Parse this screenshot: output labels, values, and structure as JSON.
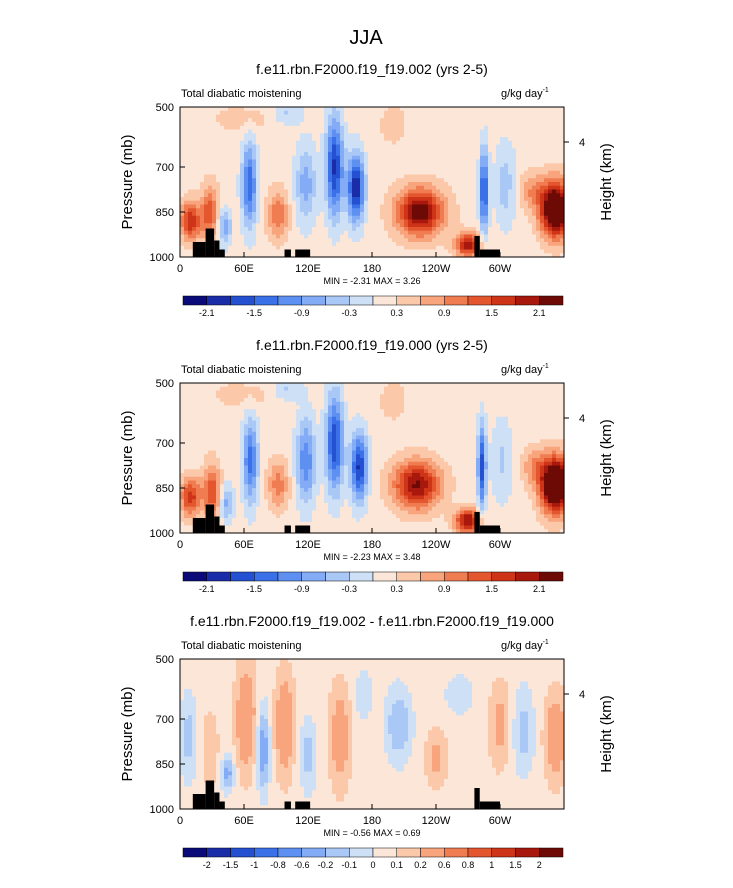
{
  "page": {
    "title": "JJA"
  },
  "chart_data": [
    {
      "type": "heatmap",
      "title": "f.e11.rbn.F2000.f19_f19.002 (yrs 2-5)",
      "left_label": "Total diabatic moistening",
      "units": "g/kg day",
      "units_exp": "-1",
      "ylabel": "Pressure (mb)",
      "ylabel_right": "Height (km)",
      "x_ticks": [
        "0",
        "60E",
        "120E",
        "180",
        "120W",
        "60W"
      ],
      "x_tick_lon": [
        0,
        60,
        120,
        180,
        240,
        300
      ],
      "xlim": [
        0,
        360
      ],
      "y_ticks": [
        "500",
        "700",
        "850",
        "1000"
      ],
      "y_tick_values": [
        500,
        700,
        850,
        1000
      ],
      "ylim": [
        1000,
        500
      ],
      "right_ticks": [
        "4"
      ],
      "stats": "MIN = -2.31  MAX =  3.26",
      "colorbar_labels": [
        "-2.1",
        "-1.5",
        "-0.9",
        "-0.3",
        "0.3",
        "0.9",
        "1.5",
        "2.1"
      ],
      "colorbar_label_slots": [
        1,
        3,
        5,
        7,
        9,
        11,
        13,
        15
      ],
      "colorbar_colors": [
        "#0a0a78",
        "#1a2ca8",
        "#2450d2",
        "#3a70e8",
        "#5e90f2",
        "#84acf6",
        "#aac8f6",
        "#cde0f6",
        "#fce6d8",
        "#fcc8aa",
        "#f8a47c",
        "#f07c52",
        "#e4562e",
        "#ce3418",
        "#a8180c",
        "#6e0a06"
      ],
      "anomalies": [
        {
          "lon": 10,
          "p": 880,
          "w": 10,
          "h": 65,
          "v": 1.6
        },
        {
          "lon": 28,
          "p": 850,
          "w": 8,
          "h": 90,
          "v": 1.2
        },
        {
          "lon": 42,
          "p": 900,
          "w": 6,
          "h": 60,
          "v": -1.0
        },
        {
          "lon": 65,
          "p": 760,
          "w": 7,
          "h": 140,
          "v": -1.6
        },
        {
          "lon": 92,
          "p": 860,
          "w": 10,
          "h": 80,
          "v": 1.0
        },
        {
          "lon": 118,
          "p": 760,
          "w": 10,
          "h": 130,
          "v": -0.9
        },
        {
          "lon": 145,
          "p": 700,
          "w": 8,
          "h": 160,
          "v": -2.0
        },
        {
          "lon": 165,
          "p": 770,
          "w": 8,
          "h": 110,
          "v": -2.2
        },
        {
          "lon": 200,
          "p": 560,
          "w": 12,
          "h": 60,
          "v": 0.4
        },
        {
          "lon": 225,
          "p": 850,
          "w": 22,
          "h": 80,
          "v": 2.2
        },
        {
          "lon": 270,
          "p": 960,
          "w": 12,
          "h": 40,
          "v": 1.8
        },
        {
          "lon": 285,
          "p": 780,
          "w": 4,
          "h": 140,
          "v": -1.8
        },
        {
          "lon": 305,
          "p": 760,
          "w": 10,
          "h": 140,
          "v": -0.6
        },
        {
          "lon": 352,
          "p": 840,
          "w": 14,
          "h": 90,
          "v": 3.0
        },
        {
          "lon": 330,
          "p": 780,
          "w": 12,
          "h": 60,
          "v": 0.7
        },
        {
          "lon": 60,
          "p": 540,
          "w": 30,
          "h": 50,
          "v": 0.3
        },
        {
          "lon": 100,
          "p": 520,
          "w": 14,
          "h": 40,
          "v": -0.5
        }
      ],
      "terrain": [
        {
          "lon0": 12,
          "lon1": 24,
          "p": 950
        },
        {
          "lon0": 24,
          "lon1": 32,
          "p": 905
        },
        {
          "lon0": 32,
          "lon1": 37,
          "p": 945
        },
        {
          "lon0": 37,
          "lon1": 42,
          "p": 975
        },
        {
          "lon0": 98,
          "lon1": 104,
          "p": 975
        },
        {
          "lon0": 108,
          "lon1": 122,
          "p": 975
        },
        {
          "lon0": 276,
          "lon1": 281,
          "p": 930
        },
        {
          "lon0": 281,
          "lon1": 300,
          "p": 975
        }
      ]
    },
    {
      "type": "heatmap",
      "title": "f.e11.rbn.F2000.f19_f19.000 (yrs 2-5)",
      "left_label": "Total diabatic moistening",
      "units": "g/kg day",
      "units_exp": "-1",
      "ylabel": "Pressure (mb)",
      "ylabel_right": "Height (km)",
      "x_ticks": [
        "0",
        "60E",
        "120E",
        "180",
        "120W",
        "60W"
      ],
      "x_tick_lon": [
        0,
        60,
        120,
        180,
        240,
        300
      ],
      "xlim": [
        0,
        360
      ],
      "y_ticks": [
        "500",
        "700",
        "850",
        "1000"
      ],
      "y_tick_values": [
        500,
        700,
        850,
        1000
      ],
      "ylim": [
        1000,
        500
      ],
      "right_ticks": [
        "4"
      ],
      "stats": "MIN = -2.23  MAX =  3.48",
      "colorbar_labels": [
        "-2.1",
        "-1.5",
        "-0.9",
        "-0.3",
        "0.3",
        "0.9",
        "1.5",
        "2.1"
      ],
      "colorbar_label_slots": [
        1,
        3,
        5,
        7,
        9,
        11,
        13,
        15
      ],
      "colorbar_colors": [
        "#0a0a78",
        "#1a2ca8",
        "#2450d2",
        "#3a70e8",
        "#5e90f2",
        "#84acf6",
        "#aac8f6",
        "#cde0f6",
        "#fce6d8",
        "#fcc8aa",
        "#f8a47c",
        "#f07c52",
        "#e4562e",
        "#ce3418",
        "#a8180c",
        "#6e0a06"
      ],
      "anomalies": [
        {
          "lon": 10,
          "p": 880,
          "w": 10,
          "h": 65,
          "v": 1.5
        },
        {
          "lon": 30,
          "p": 860,
          "w": 8,
          "h": 90,
          "v": 1.3
        },
        {
          "lon": 44,
          "p": 900,
          "w": 6,
          "h": 60,
          "v": -0.9
        },
        {
          "lon": 66,
          "p": 760,
          "w": 7,
          "h": 140,
          "v": -1.5
        },
        {
          "lon": 92,
          "p": 840,
          "w": 10,
          "h": 80,
          "v": 0.9
        },
        {
          "lon": 118,
          "p": 760,
          "w": 9,
          "h": 140,
          "v": -1.3
        },
        {
          "lon": 145,
          "p": 700,
          "w": 8,
          "h": 160,
          "v": -1.9
        },
        {
          "lon": 168,
          "p": 780,
          "w": 8,
          "h": 110,
          "v": -2.0
        },
        {
          "lon": 200,
          "p": 560,
          "w": 12,
          "h": 60,
          "v": 0.4
        },
        {
          "lon": 222,
          "p": 840,
          "w": 22,
          "h": 80,
          "v": 2.0
        },
        {
          "lon": 270,
          "p": 960,
          "w": 12,
          "h": 40,
          "v": 2.0
        },
        {
          "lon": 283,
          "p": 780,
          "w": 4,
          "h": 140,
          "v": -1.8
        },
        {
          "lon": 302,
          "p": 760,
          "w": 10,
          "h": 140,
          "v": -0.5
        },
        {
          "lon": 352,
          "p": 840,
          "w": 14,
          "h": 90,
          "v": 3.2
        },
        {
          "lon": 332,
          "p": 780,
          "w": 12,
          "h": 60,
          "v": 0.7
        },
        {
          "lon": 60,
          "p": 540,
          "w": 30,
          "h": 50,
          "v": 0.3
        },
        {
          "lon": 100,
          "p": 520,
          "w": 14,
          "h": 40,
          "v": -0.5
        }
      ],
      "terrain": [
        {
          "lon0": 12,
          "lon1": 24,
          "p": 950
        },
        {
          "lon0": 24,
          "lon1": 32,
          "p": 905
        },
        {
          "lon0": 32,
          "lon1": 37,
          "p": 945
        },
        {
          "lon0": 37,
          "lon1": 42,
          "p": 975
        },
        {
          "lon0": 98,
          "lon1": 104,
          "p": 975
        },
        {
          "lon0": 108,
          "lon1": 122,
          "p": 975
        },
        {
          "lon0": 276,
          "lon1": 281,
          "p": 930
        },
        {
          "lon0": 281,
          "lon1": 300,
          "p": 975
        }
      ]
    },
    {
      "type": "heatmap",
      "title": "f.e11.rbn.F2000.f19_f19.002 - f.e11.rbn.F2000.f19_f19.000",
      "left_label": "Total diabatic moistening",
      "units": "g/kg day",
      "units_exp": "-1",
      "ylabel": "Pressure (mb)",
      "ylabel_right": "Height (km)",
      "x_ticks": [
        "0",
        "60E",
        "120E",
        "180",
        "120W",
        "60W"
      ],
      "x_tick_lon": [
        0,
        60,
        120,
        180,
        240,
        300
      ],
      "xlim": [
        0,
        360
      ],
      "y_ticks": [
        "500",
        "700",
        "850",
        "1000"
      ],
      "y_tick_values": [
        500,
        700,
        850,
        1000
      ],
      "ylim": [
        1000,
        500
      ],
      "right_ticks": [
        "4"
      ],
      "stats": "MIN = -0.56  MAX =  0.69",
      "colorbar_labels": [
        "-2",
        "-1.5",
        "-1",
        "-0.8",
        "-0.6",
        "-0.2",
        "-0.1",
        "0",
        "0.1",
        "0.2",
        "0.6",
        "0.8",
        "1",
        "1.5",
        "2"
      ],
      "colorbar_label_slots": [
        1,
        2,
        3,
        4,
        5,
        6,
        7,
        8,
        9,
        10,
        11,
        12,
        13,
        14,
        15
      ],
      "colorbar_colors": [
        "#0a0a78",
        "#1a2ca8",
        "#2450d2",
        "#3a70e8",
        "#5e90f2",
        "#84acf6",
        "#aac8f6",
        "#cde0f6",
        "#fce6d8",
        "#fcc8aa",
        "#f8a47c",
        "#f07c52",
        "#e4562e",
        "#ce3418",
        "#a8180c",
        "#6e0a06"
      ],
      "anomalies": [
        {
          "lon": 8,
          "p": 760,
          "w": 8,
          "h": 140,
          "v": -0.2
        },
        {
          "lon": 28,
          "p": 800,
          "w": 8,
          "h": 120,
          "v": 0.15
        },
        {
          "lon": 45,
          "p": 880,
          "w": 6,
          "h": 60,
          "v": -0.3
        },
        {
          "lon": 62,
          "p": 700,
          "w": 10,
          "h": 180,
          "v": 0.3
        },
        {
          "lon": 78,
          "p": 800,
          "w": 6,
          "h": 140,
          "v": -0.35
        },
        {
          "lon": 98,
          "p": 720,
          "w": 9,
          "h": 170,
          "v": 0.3
        },
        {
          "lon": 120,
          "p": 820,
          "w": 8,
          "h": 120,
          "v": -0.2
        },
        {
          "lon": 150,
          "p": 760,
          "w": 10,
          "h": 170,
          "v": 0.25
        },
        {
          "lon": 172,
          "p": 620,
          "w": 8,
          "h": 80,
          "v": -0.15
        },
        {
          "lon": 205,
          "p": 720,
          "w": 12,
          "h": 120,
          "v": -0.25
        },
        {
          "lon": 240,
          "p": 830,
          "w": 10,
          "h": 90,
          "v": 0.2
        },
        {
          "lon": 262,
          "p": 620,
          "w": 16,
          "h": 80,
          "v": -0.1
        },
        {
          "lon": 300,
          "p": 720,
          "w": 10,
          "h": 140,
          "v": 0.2
        },
        {
          "lon": 322,
          "p": 740,
          "w": 10,
          "h": 140,
          "v": -0.2
        },
        {
          "lon": 352,
          "p": 760,
          "w": 10,
          "h": 140,
          "v": 0.3
        }
      ],
      "terrain": [
        {
          "lon0": 12,
          "lon1": 24,
          "p": 950
        },
        {
          "lon0": 24,
          "lon1": 32,
          "p": 905
        },
        {
          "lon0": 32,
          "lon1": 37,
          "p": 945
        },
        {
          "lon0": 37,
          "lon1": 42,
          "p": 975
        },
        {
          "lon0": 98,
          "lon1": 104,
          "p": 975
        },
        {
          "lon0": 108,
          "lon1": 122,
          "p": 975
        },
        {
          "lon0": 276,
          "lon1": 281,
          "p": 930
        },
        {
          "lon0": 281,
          "lon1": 300,
          "p": 975
        }
      ]
    }
  ]
}
